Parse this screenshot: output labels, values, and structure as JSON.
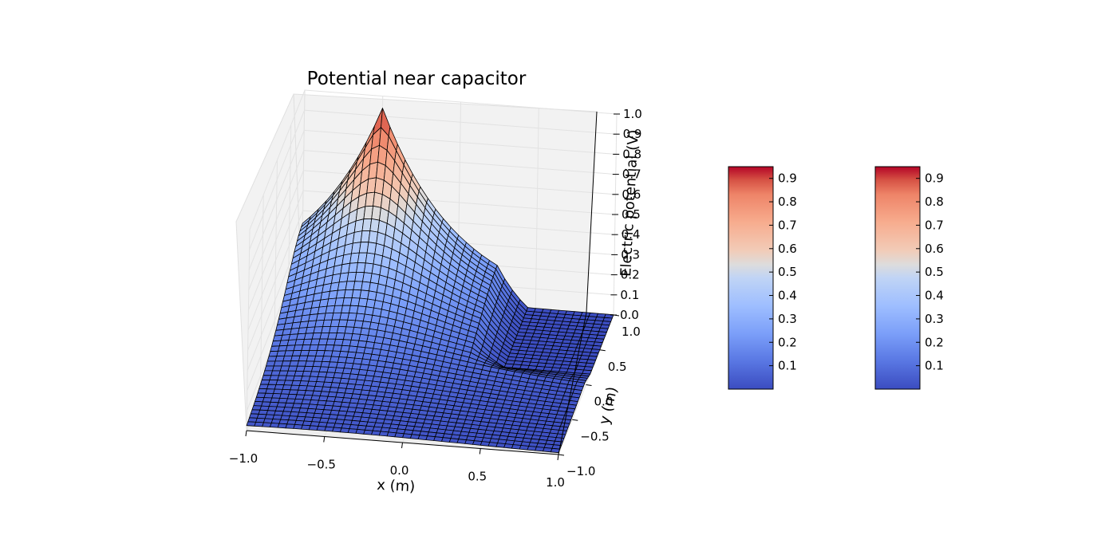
{
  "chart_data": {
    "type": "surface",
    "title": "Potential near capacitor",
    "xlabel": "x (m)",
    "ylabel": "y (m)",
    "zlabel": "Electric potential (V)",
    "xlim": [
      -1.0,
      1.0
    ],
    "ylim": [
      -1.0,
      1.0
    ],
    "zlim": [
      0.0,
      1.0
    ],
    "x_ticks": [
      "−1.0",
      "−0.5",
      "0.0",
      "0.5",
      "1.0"
    ],
    "y_ticks": [
      "−1.0",
      "−0.5",
      "0.0",
      "0.5",
      "1.0"
    ],
    "z_ticks": [
      "0.0",
      "0.1",
      "0.2",
      "0.3",
      "0.4",
      "0.5",
      "0.6",
      "0.7",
      "0.8",
      "0.9",
      "1.0"
    ],
    "colormap": "coolwarm",
    "grid": true,
    "peak": {
      "x": -0.5,
      "y": 1.0,
      "z": 0.94
    },
    "colorbars": [
      {
        "ticks": [
          "0.1",
          "0.2",
          "0.3",
          "0.4",
          "0.5",
          "0.6",
          "0.7",
          "0.8",
          "0.9"
        ],
        "range": [
          0.0,
          0.95
        ]
      },
      {
        "ticks": [
          "0.1",
          "0.2",
          "0.3",
          "0.4",
          "0.5",
          "0.6",
          "0.7",
          "0.8",
          "0.9"
        ],
        "range": [
          0.0,
          0.95
        ]
      }
    ]
  },
  "colors": {
    "cold": "#3b4cc0",
    "mid": "#dddddd",
    "hot": "#b40426",
    "pane": "#f2f2f2",
    "pane_edge": "#e6e6e6"
  }
}
